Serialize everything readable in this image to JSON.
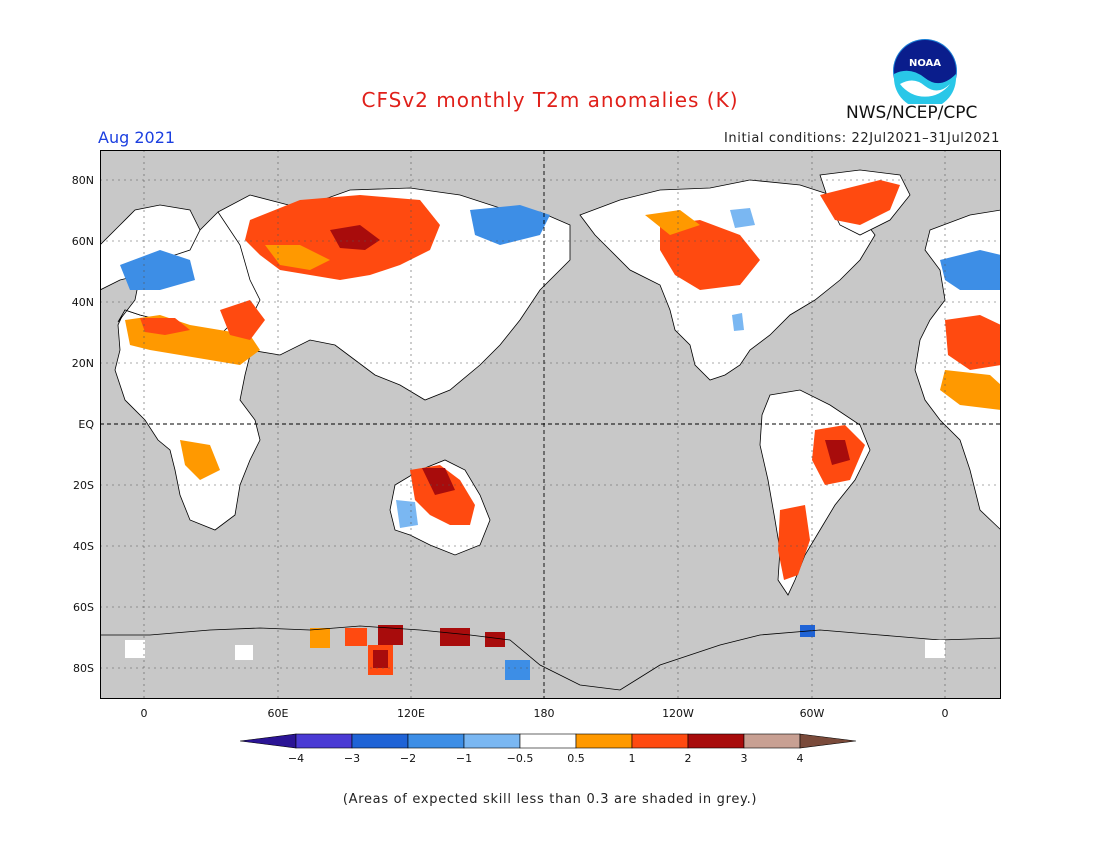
{
  "header": {
    "title": "CFSv2 monthly T2m anomalies (K)",
    "organization": "NWS/NCEP/CPC",
    "logo_text": "NOAA",
    "period": "Aug 2021",
    "initial_conditions": "Initial conditions: 22Jul2021–31Jul2021"
  },
  "map": {
    "projection": "equirectangular, Pacific-centered (180 at center)",
    "lat_labels": [
      "80N",
      "60N",
      "40N",
      "20N",
      "EQ",
      "20S",
      "40S",
      "60S",
      "80S"
    ],
    "lon_labels": [
      "0",
      "60E",
      "120E",
      "180",
      "120W",
      "60W",
      "0"
    ],
    "background_color": "#c8c8c8",
    "reference_lines": [
      "equator dashed",
      "180 meridian dashed"
    ]
  },
  "colorbar": {
    "tick_labels": [
      "−4",
      "−3",
      "−2",
      "−1",
      "−0.5",
      "0.5",
      "1",
      "2",
      "3",
      "4"
    ],
    "colors": [
      "#2b1495",
      "#4a3ad4",
      "#1f63d6",
      "#3d8ee6",
      "#7ab7f2",
      "#ffffff",
      "#ff9900",
      "#ff4a10",
      "#a80c0c",
      "#c8a093",
      "#7a4a3a"
    ]
  },
  "footer": {
    "note": "(Areas of expected skill less than 0.3 are shaded in grey.)"
  }
}
